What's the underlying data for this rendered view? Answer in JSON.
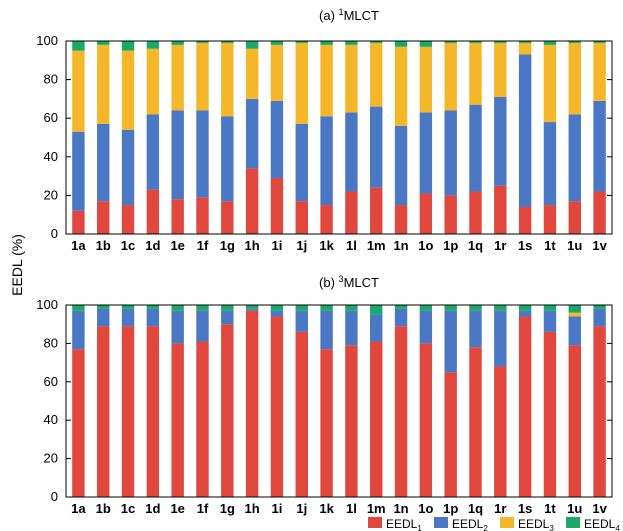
{
  "ylabel": "EEDL (%)",
  "legend": [
    {
      "base": "EEDL",
      "sub": "1",
      "color": "#e0483d"
    },
    {
      "base": "EEDL",
      "sub": "2",
      "color": "#4a78c4"
    },
    {
      "base": "EEDL",
      "sub": "3",
      "color": "#f5b72a"
    },
    {
      "base": "EEDL",
      "sub": "4",
      "color": "#1ba86a"
    }
  ],
  "chart_data": [
    {
      "type": "bar",
      "stacked": true,
      "title_prefix": "(a) ",
      "title_sup": "1",
      "title_main": "MLCT",
      "ylim": [
        0,
        100
      ],
      "yticks": [
        0,
        20,
        40,
        60,
        80,
        100
      ],
      "categories": [
        "1a",
        "1b",
        "1c",
        "1d",
        "1e",
        "1f",
        "1g",
        "1h",
        "1i",
        "1j",
        "1k",
        "1l",
        "1m",
        "1n",
        "1o",
        "1p",
        "1q",
        "1r",
        "1s",
        "1t",
        "1u",
        "1v"
      ],
      "series": [
        {
          "name": "EEDL1",
          "color": "#e0483d",
          "values": [
            12,
            17,
            15,
            23,
            18,
            19,
            17,
            34,
            29,
            17,
            15,
            22,
            24,
            15,
            21,
            20,
            22,
            25,
            14,
            15,
            17,
            22
          ]
        },
        {
          "name": "EEDL2",
          "color": "#4a78c4",
          "values": [
            41,
            40,
            39,
            39,
            46,
            45,
            44,
            36,
            40,
            40,
            46,
            41,
            42,
            41,
            42,
            44,
            45,
            46,
            79,
            43,
            45,
            47
          ]
        },
        {
          "name": "EEDL3",
          "color": "#f5b72a",
          "values": [
            42,
            41,
            41,
            34,
            34,
            35,
            38,
            26,
            29,
            42,
            37,
            35,
            33,
            41,
            34,
            35,
            32,
            28,
            6,
            40,
            37,
            30
          ]
        },
        {
          "name": "EEDL4",
          "color": "#1ba86a",
          "values": [
            5,
            2,
            5,
            4,
            2,
            1,
            1,
            4,
            2,
            1,
            2,
            2,
            1,
            3,
            3,
            1,
            1,
            1,
            1,
            2,
            1,
            1
          ]
        }
      ]
    },
    {
      "type": "bar",
      "stacked": true,
      "title_prefix": "(b) ",
      "title_sup": "3",
      "title_main": "MLCT",
      "ylim": [
        0,
        100
      ],
      "yticks": [
        0,
        20,
        40,
        60,
        80,
        100
      ],
      "categories": [
        "1a",
        "1b",
        "1c",
        "1d",
        "1e",
        "1f",
        "1g",
        "1h",
        "1i",
        "1j",
        "1k",
        "1l",
        "1m",
        "1n",
        "1o",
        "1p",
        "1q",
        "1r",
        "1s",
        "1t",
        "1u",
        "1v"
      ],
      "series": [
        {
          "name": "EEDL1",
          "color": "#e0483d",
          "values": [
            77,
            89,
            89,
            89,
            80,
            81,
            90,
            97,
            94,
            86,
            77,
            79,
            81,
            89,
            80,
            65,
            78,
            68,
            94,
            86,
            79,
            89
          ]
        },
        {
          "name": "EEDL2",
          "color": "#4a78c4",
          "values": [
            20,
            9,
            9,
            9,
            17,
            16,
            7,
            1,
            3,
            11,
            20,
            18,
            14,
            9,
            17,
            32,
            19,
            29,
            3,
            11,
            15,
            9
          ]
        },
        {
          "name": "EEDL3",
          "color": "#f5b72a",
          "values": [
            0,
            0,
            0,
            0,
            0,
            0,
            0,
            0,
            0,
            0,
            0,
            0,
            0,
            0,
            0,
            0,
            0,
            0,
            0,
            0,
            2,
            0
          ]
        },
        {
          "name": "EEDL4",
          "color": "#1ba86a",
          "values": [
            3,
            2,
            2,
            2,
            3,
            3,
            3,
            2,
            3,
            3,
            3,
            3,
            5,
            2,
            3,
            3,
            3,
            3,
            3,
            3,
            4,
            2
          ]
        }
      ]
    }
  ]
}
